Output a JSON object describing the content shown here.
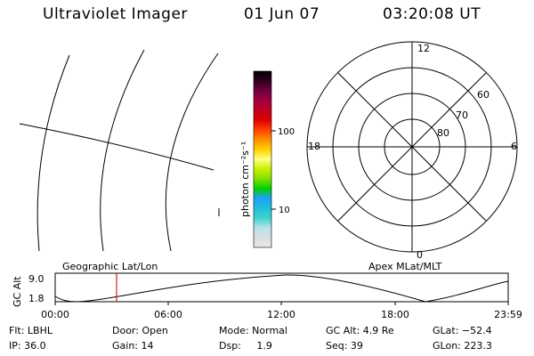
{
  "header": {
    "title": "Ultraviolet Imager",
    "date": "01 Jun 07",
    "time": "03:20:08 UT"
  },
  "colorbar": {
    "unit_label": "photon cm⁻²s⁻¹",
    "tick_100": "100",
    "tick_10": "10",
    "stops": [
      "#e8e8e8",
      "#d9dde2",
      "#b9e2ea",
      "#3fd3cf",
      "#20c0d8",
      "#1ea0ff",
      "#00d000",
      "#7ee000",
      "#c8f000",
      "#ffff80",
      "#ffd000",
      "#ff9000",
      "#ff4000",
      "#e00000",
      "#c00020",
      "#a00040",
      "#700040",
      "#300020",
      "#000000"
    ]
  },
  "polar": {
    "label_top": "12",
    "label_left": "18",
    "label_right": "6",
    "label_bottom": "0",
    "ring_60": "60",
    "ring_70": "70",
    "ring_80": "80"
  },
  "strip": {
    "left_title": "Geographic Lat/Lon",
    "right_title": "Apex MLat/MLT",
    "ylabel": "GC Alt",
    "y_max": "9.0",
    "y_min": "1.8",
    "x_ticks": [
      "00:00",
      "06:00",
      "12:00",
      "18:00",
      "23:59"
    ],
    "marker_color": "#cc2222"
  },
  "info": {
    "flt": "Flt: LBHL",
    "ip": "IP: 36.0",
    "door": "Door: Open",
    "gain": "Gain: 14",
    "mode": "Mode: Normal",
    "dsp": "Dsp:     1.9",
    "gcalt": "GC Alt: 4.9 Re",
    "seq": "Seq: 39",
    "glat": "GLat: −52.4",
    "glon": "GLon: 223.3"
  }
}
